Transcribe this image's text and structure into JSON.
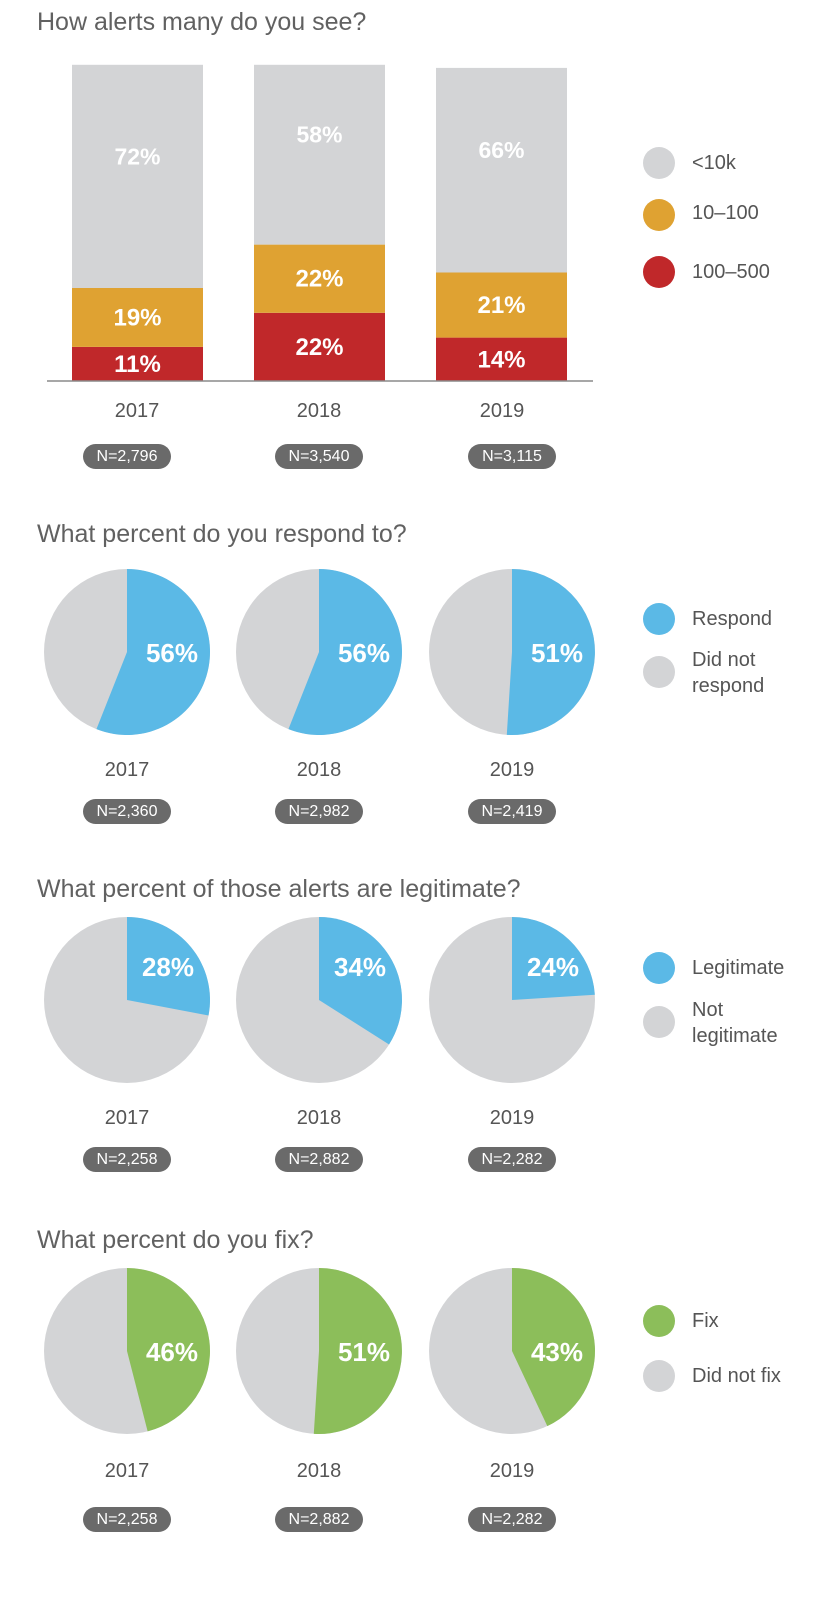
{
  "chart_data": [
    {
      "type": "bar",
      "stacked": true,
      "title": "How alerts many do you see?",
      "categories": [
        "2017",
        "2018",
        "2019"
      ],
      "sample_sizes": [
        "N=2,796",
        "N=3,540",
        "N=3,115"
      ],
      "series": [
        {
          "name": "100–500",
          "color": "#c0282a",
          "values": [
            11,
            22,
            14
          ],
          "labels": [
            "11%",
            "22%",
            "14%"
          ]
        },
        {
          "name": "10–100",
          "color": "#dfa232",
          "values": [
            19,
            22,
            21
          ],
          "labels": [
            "19%",
            "22%",
            "21%"
          ]
        },
        {
          "name": "<10k",
          "color": "#d3d4d6",
          "values": [
            72,
            58,
            66
          ],
          "labels": [
            "72%",
            "58%",
            "66%"
          ]
        }
      ],
      "legend": [
        "<10k",
        "10–100",
        "100–500"
      ],
      "legend_colors": [
        "#d3d4d6",
        "#dfa232",
        "#c0282a"
      ]
    },
    {
      "type": "pie",
      "title": "What percent do you respond to?",
      "categories": [
        "2017",
        "2018",
        "2019"
      ],
      "sample_sizes": [
        "N=2,360",
        "N=2,982",
        "N=2,419"
      ],
      "values": [
        56,
        56,
        51
      ],
      "labels": [
        "56%",
        "56%",
        "51%"
      ],
      "legend": [
        "Respond",
        "Did not respond"
      ],
      "colors": [
        "#5bb9e6",
        "#d3d4d6"
      ]
    },
    {
      "type": "pie",
      "title": "What percent of those alerts are legitimate?",
      "categories": [
        "2017",
        "2018",
        "2019"
      ],
      "sample_sizes": [
        "N=2,258",
        "N=2,882",
        "N=2,282"
      ],
      "values": [
        28,
        34,
        24
      ],
      "labels": [
        "28%",
        "34%",
        "24%"
      ],
      "legend": [
        "Legitimate",
        "Not legitimate"
      ],
      "colors": [
        "#5bb9e6",
        "#d3d4d6"
      ]
    },
    {
      "type": "pie",
      "title": "What percent do you fix?",
      "categories": [
        "2017",
        "2018",
        "2019"
      ],
      "sample_sizes": [
        "N=2,258",
        "N=2,882",
        "N=2,282"
      ],
      "values": [
        46,
        51,
        43
      ],
      "labels": [
        "46%",
        "51%",
        "43%"
      ],
      "legend": [
        "Fix",
        "Did not fix"
      ],
      "colors": [
        "#8cbe5a",
        "#d3d4d6"
      ]
    }
  ]
}
